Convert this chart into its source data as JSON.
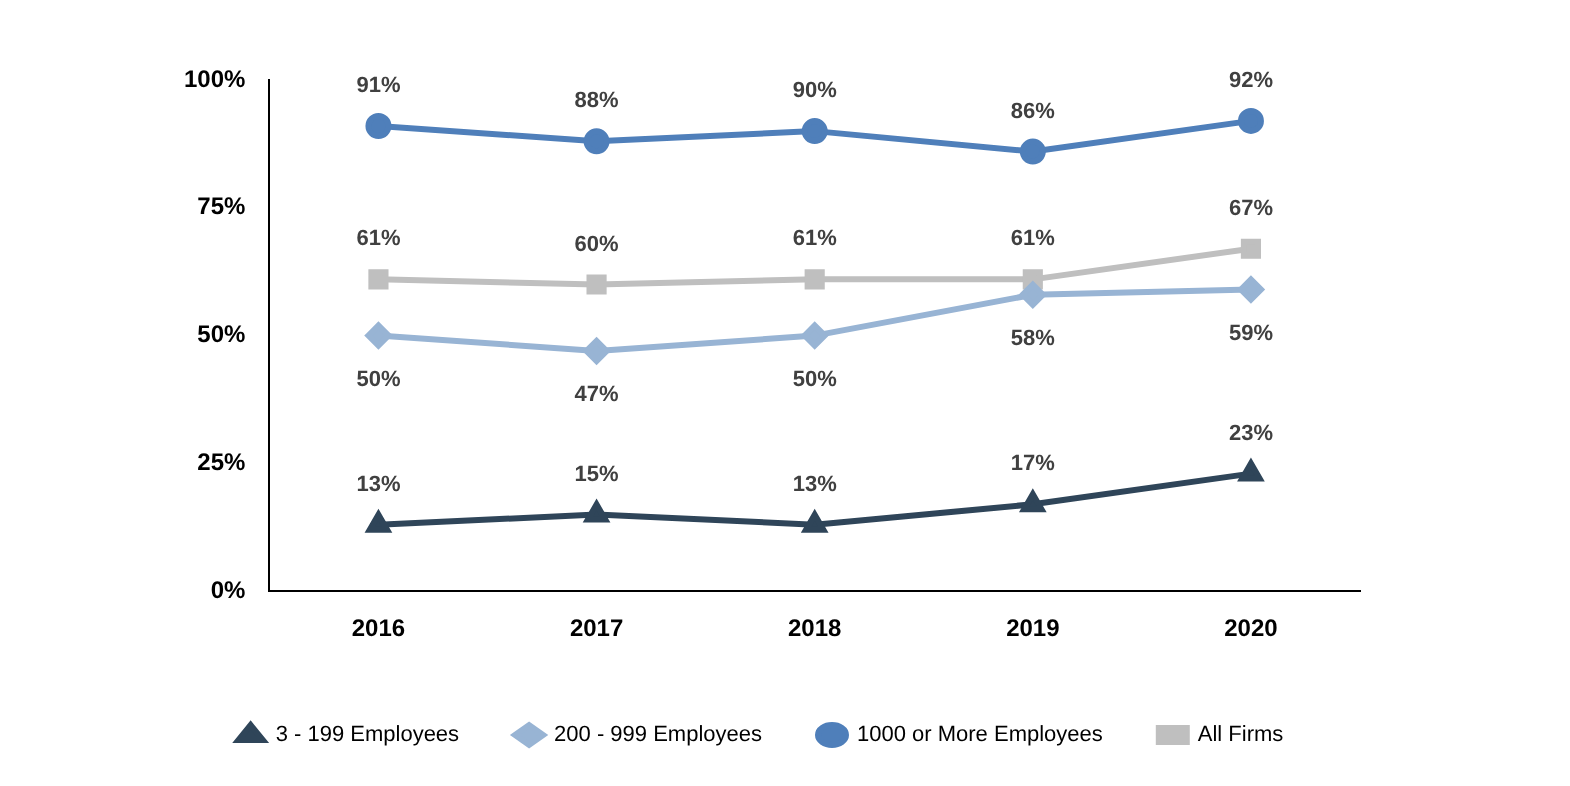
{
  "chart_data": {
    "type": "line",
    "categories": [
      "2016",
      "2017",
      "2018",
      "2019",
      "2020"
    ],
    "series": [
      {
        "name": "3 - 199 Employees",
        "color": "#2f4559",
        "marker": "triangle",
        "values": [
          13,
          15,
          13,
          17,
          23
        ],
        "value_labels": [
          "13%",
          "15%",
          "13%",
          "17%",
          "23%"
        ]
      },
      {
        "name": "200 - 999 Employees",
        "color": "#98b4d4",
        "marker": "diamond",
        "values": [
          50,
          47,
          50,
          58,
          59
        ],
        "value_labels": [
          "50%",
          "47%",
          "50%",
          "58%",
          "59%"
        ]
      },
      {
        "name": "1000 or More Employees",
        "color": "#4f7fba",
        "marker": "circle",
        "values": [
          91,
          88,
          90,
          86,
          92
        ],
        "value_labels": [
          "91%",
          "88%",
          "90%",
          "86%",
          "92%"
        ]
      },
      {
        "name": "All Firms",
        "color": "#bfbfbf",
        "marker": "square",
        "values": [
          61,
          60,
          61,
          61,
          67
        ],
        "value_labels": [
          "61%",
          "60%",
          "61%",
          "61%",
          "67%"
        ]
      }
    ],
    "ylim": [
      0,
      100
    ],
    "yticks": [
      {
        "value": 0,
        "label": "0%"
      },
      {
        "value": 25,
        "label": "25%"
      },
      {
        "value": 50,
        "label": "50%"
      },
      {
        "value": 75,
        "label": "75%"
      },
      {
        "value": 100,
        "label": "100%"
      }
    ],
    "grid": false,
    "legend": "bottom",
    "line_style": "solid"
  }
}
